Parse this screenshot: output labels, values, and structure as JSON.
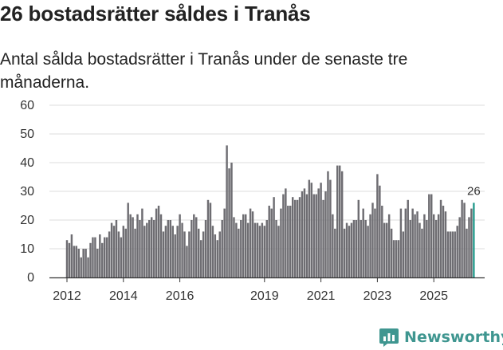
{
  "title": "26 bostadsrätter såldes i Tranås",
  "subtitle": "Antal sålda bostadsrätter i Tranås under de senaste tre månaderna.",
  "brand": {
    "name": "Newsworthy",
    "color": "#3f9690"
  },
  "chart_data": {
    "type": "bar",
    "title": "26 bostadsrätter såldes i Tranås",
    "subtitle": "Antal sålda bostadsrätter i Tranås under de senaste tre månaderna.",
    "xlabel": "",
    "ylabel": "",
    "ylim": [
      0,
      60
    ],
    "yticks": [
      0,
      10,
      20,
      30,
      40,
      50,
      60
    ],
    "grid": true,
    "x_start": "2012-01",
    "x_tick_labels": [
      "2012",
      "2014",
      "2016",
      "2019",
      "2021",
      "2023",
      "2025"
    ],
    "x_tick_month_index": [
      0,
      24,
      48,
      84,
      108,
      132,
      156
    ],
    "bar_color": "#6e6d72",
    "highlight_color": "#2a9d8f",
    "highlight_label": "26",
    "values": [
      13,
      12,
      15,
      11,
      11,
      10,
      7,
      10,
      10,
      7,
      12,
      14,
      14,
      10,
      15,
      12,
      14,
      14,
      16,
      19,
      18,
      20,
      16,
      14,
      18,
      17,
      26,
      22,
      21,
      17,
      22,
      20,
      24,
      18,
      19,
      20,
      21,
      20,
      24,
      25,
      22,
      16,
      18,
      20,
      20,
      18,
      15,
      18,
      22,
      19,
      16,
      11,
      16,
      20,
      22,
      21,
      17,
      13,
      16,
      20,
      27,
      26,
      18,
      15,
      13,
      16,
      20,
      24,
      46,
      38,
      40,
      21,
      19,
      17,
      20,
      22,
      22,
      19,
      24,
      23,
      19,
      19,
      18,
      19,
      18,
      20,
      25,
      24,
      28,
      20,
      18,
      24,
      29,
      31,
      25,
      25,
      28,
      27,
      27,
      28,
      30,
      31,
      29,
      34,
      33,
      29,
      29,
      31,
      33,
      27,
      30,
      37,
      34,
      22,
      17,
      39,
      39,
      37,
      17,
      19,
      18,
      19,
      20,
      20,
      27,
      20,
      24,
      20,
      18,
      22,
      26,
      24,
      36,
      32,
      25,
      19,
      19,
      22,
      17,
      13,
      13,
      13,
      24,
      16,
      24,
      27,
      20,
      24,
      22,
      23,
      19,
      17,
      22,
      20,
      29,
      29,
      22,
      20,
      22,
      27,
      25,
      23,
      16,
      16,
      16,
      16,
      18,
      21,
      27,
      26,
      17,
      21,
      24,
      26
    ]
  }
}
